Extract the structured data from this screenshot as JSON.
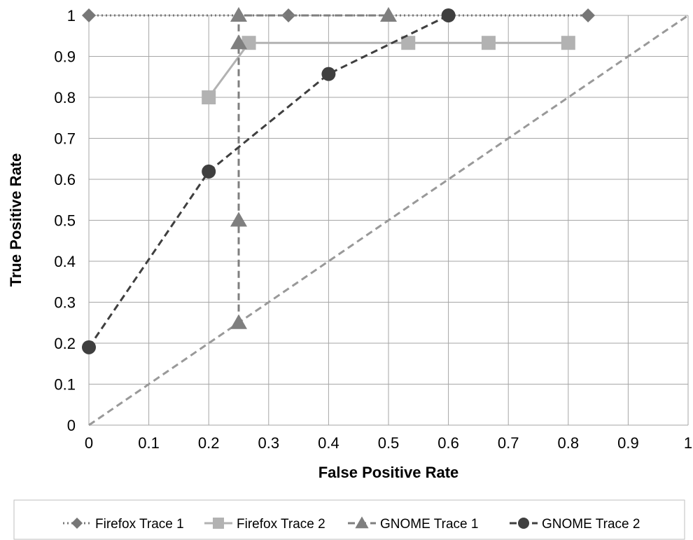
{
  "chart_data": {
    "type": "line",
    "title": "",
    "xlabel": "False Positive Rate",
    "ylabel": "True Positive Rate",
    "xlim": [
      0,
      1
    ],
    "ylim": [
      0,
      1
    ],
    "x_ticks": [
      0,
      0.1,
      0.2,
      0.3,
      0.4,
      0.5,
      0.6,
      0.7,
      0.8,
      0.9,
      1
    ],
    "y_ticks": [
      0,
      0.1,
      0.2,
      0.3,
      0.4,
      0.5,
      0.6,
      0.7,
      0.8,
      0.9,
      1
    ],
    "x_tick_labels": [
      "0",
      "0.1",
      "0.2",
      "0.3",
      "0.4",
      "0.5",
      "0.6",
      "0.7",
      "0.8",
      "0.9",
      "1"
    ],
    "y_tick_labels": [
      "0",
      "0.1",
      "0.2",
      "0.3",
      "0.4",
      "0.5",
      "0.6",
      "0.7",
      "0.8",
      "0.9",
      "1"
    ],
    "grid": true,
    "legend_position": "bottom",
    "reference_line": {
      "x": [
        0,
        1
      ],
      "y": [
        0,
        1
      ],
      "color": "#999999",
      "dash": "dashed"
    },
    "series": [
      {
        "name": "Firefox Trace 1",
        "marker": "diamond",
        "line_style": "dotted",
        "color": "#777777",
        "x": [
          0,
          0.333,
          0.833
        ],
        "y": [
          1,
          1,
          1
        ]
      },
      {
        "name": "Firefox Trace 2",
        "marker": "square",
        "line_style": "solid",
        "color": "#b2b2b2",
        "x": [
          0.2,
          0.267,
          0.533,
          0.667,
          0.8
        ],
        "y": [
          0.8,
          0.933,
          0.933,
          0.933,
          0.933
        ]
      },
      {
        "name": "GNOME Trace 1",
        "marker": "triangle",
        "line_style": "dashed",
        "color": "#7f7f7f",
        "x": [
          0.25,
          0.25,
          0.25,
          0.25,
          0.5
        ],
        "y": [
          0.25,
          0.5,
          0.933,
          1,
          1
        ]
      },
      {
        "name": "GNOME Trace 2",
        "marker": "circle",
        "line_style": "dashed",
        "color": "#3f3f3f",
        "x": [
          0,
          0.2,
          0.4,
          0.6
        ],
        "y": [
          0.19,
          0.619,
          0.857,
          1
        ]
      }
    ]
  }
}
